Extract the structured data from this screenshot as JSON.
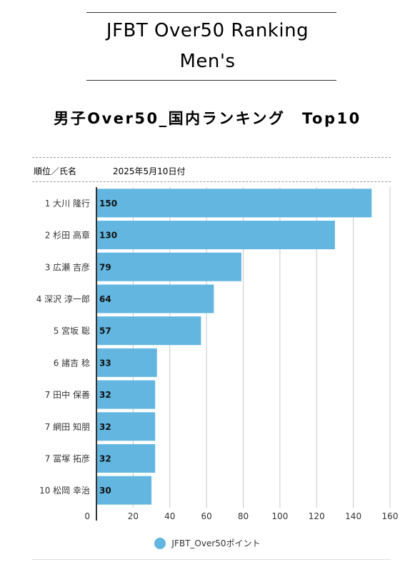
{
  "page": {
    "title_line1": "JFBT Over50 Ranking",
    "title_line2": "Men's",
    "subtitle": "男子Over50_国内ランキング　Top10",
    "header_label": "順位／氏名",
    "header_date": "2025年5月10日付"
  },
  "colors": {
    "bar": "#62b6e0",
    "grid": "#c8c8c8",
    "axis": "#333333"
  },
  "chart_data": {
    "type": "bar",
    "orientation": "horizontal",
    "categories": [
      "1 大川 隆行",
      "2 杉田 高章",
      "3 広瀬 吉彦",
      "4 深沢 淳一郎",
      "5 宮坂 聡",
      "6 諸吉 稔",
      "7 田中 保善",
      "7 網田 知朋",
      "7 冨塚 拓彦",
      "10 松岡 幸治"
    ],
    "series": [
      {
        "name": "JFBT_Over50ポイント",
        "values": [
          150,
          130,
          79,
          64,
          57,
          33,
          32,
          32,
          32,
          30
        ]
      }
    ],
    "xlim": [
      0,
      160
    ],
    "xticks": [
      0,
      20,
      40,
      60,
      80,
      100,
      120,
      140,
      160
    ],
    "grid": true,
    "legend_position": "bottom"
  }
}
